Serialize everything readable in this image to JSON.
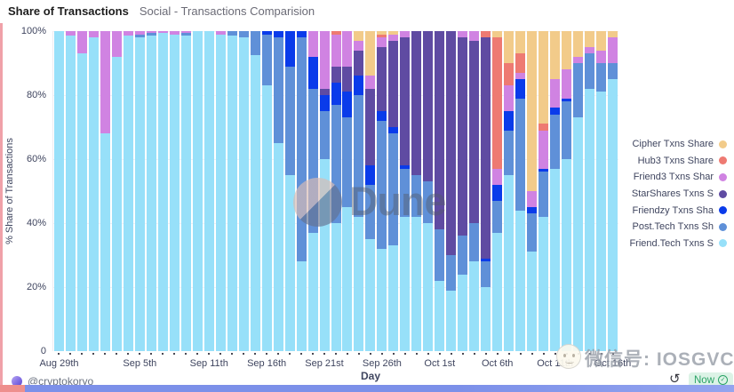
{
  "header": {
    "title": "Share of Transactions",
    "subtitle": "Social - Transactions Comparision"
  },
  "footer": {
    "author": "@cryptokoryo",
    "refresh_status": "Now"
  },
  "icons": {
    "refresh": "↺",
    "check": "✓"
  },
  "watermarks": {
    "dune_text": "Dune",
    "wechat_text": "微信号: IOSGVC"
  },
  "chart_data": {
    "type": "bar",
    "stacked": true,
    "unit": "%",
    "title": "Share of Transactions",
    "xlabel": "Day",
    "ylabel": "% Share of Transactions",
    "ylim": [
      0,
      100
    ],
    "grid": true,
    "legend_position": "right",
    "y_ticks": [
      {
        "label": "100%",
        "value": 100
      },
      {
        "label": "80%",
        "value": 80
      },
      {
        "label": "60%",
        "value": 60
      },
      {
        "label": "40%",
        "value": 40
      },
      {
        "label": "20%",
        "value": 20
      },
      {
        "label": "0",
        "value": 0
      }
    ],
    "x_ticks": [
      {
        "label": "Aug 29th",
        "index": 0
      },
      {
        "label": "Sep 5th",
        "index": 7
      },
      {
        "label": "Sep 11th",
        "index": 13
      },
      {
        "label": "Sep 16th",
        "index": 18
      },
      {
        "label": "Sep 21st",
        "index": 23
      },
      {
        "label": "Sep 26th",
        "index": 28
      },
      {
        "label": "Oct 1st",
        "index": 33
      },
      {
        "label": "Oct 6th",
        "index": 38
      },
      {
        "label": "Oct 11th",
        "index": 43
      },
      {
        "label": "Oct 16th",
        "index": 48
      }
    ],
    "x": [
      "Aug 29th",
      "Aug 30th",
      "Aug 31st",
      "Sep 1st",
      "Sep 2nd",
      "Sep 3rd",
      "Sep 4th",
      "Sep 5th",
      "Sep 6th",
      "Sep 7th",
      "Sep 8th",
      "Sep 9th",
      "Sep 10th",
      "Sep 11th",
      "Sep 12th",
      "Sep 13th",
      "Sep 14th",
      "Sep 15th",
      "Sep 16th",
      "Sep 17th",
      "Sep 18th",
      "Sep 19th",
      "Sep 20th",
      "Sep 21st",
      "Sep 22nd",
      "Sep 23rd",
      "Sep 24th",
      "Sep 25th",
      "Sep 26th",
      "Sep 27th",
      "Sep 28th",
      "Sep 29th",
      "Sep 30th",
      "Oct 1st",
      "Oct 2nd",
      "Oct 3rd",
      "Oct 4th",
      "Oct 5th",
      "Oct 6th",
      "Oct 7th",
      "Oct 8th",
      "Oct 9th",
      "Oct 10th",
      "Oct 11th",
      "Oct 12th",
      "Oct 13th",
      "Oct 14th",
      "Oct 15th",
      "Oct 16th"
    ],
    "series": [
      {
        "name": "Friend.Tech Txns Share",
        "color": "#97e0f9",
        "values": [
          100,
          98.5,
          93,
          98,
          68,
          92,
          98.5,
          98,
          98.5,
          99.5,
          99,
          98.5,
          100,
          100,
          99,
          98.5,
          98,
          92.5,
          83,
          65,
          55,
          28,
          37,
          60,
          40,
          45,
          42,
          35,
          32,
          33,
          42,
          42,
          40,
          22,
          19,
          24,
          28,
          20,
          37,
          55,
          44,
          31,
          42,
          57,
          60,
          73,
          82,
          81,
          85
        ]
      },
      {
        "name": "Post.Tech Txns Share",
        "color": "#5f90d8",
        "values": [
          0,
          0,
          0,
          0,
          0,
          0,
          0,
          1,
          1,
          0,
          0,
          1,
          0,
          0,
          0,
          1.5,
          2,
          7.5,
          16,
          33,
          34,
          70,
          45,
          15,
          37,
          28,
          38,
          17,
          40,
          35,
          15,
          13,
          13,
          16,
          11,
          12,
          12,
          8,
          10,
          14,
          35,
          12,
          14,
          17,
          18,
          17,
          11,
          9,
          5
        ]
      },
      {
        "name": "Friendzy Txns Share",
        "color": "#0a3bea",
        "values": [
          0,
          0,
          0,
          0,
          0,
          0,
          0,
          0,
          0,
          0,
          0,
          0,
          0,
          0,
          0,
          0,
          0,
          0,
          1,
          2,
          11,
          2,
          10,
          5,
          7,
          8,
          6,
          6,
          3,
          2,
          1,
          0,
          0,
          0,
          0,
          0,
          0,
          1,
          5,
          6,
          6,
          2,
          1,
          2,
          1,
          0,
          0,
          0,
          0
        ]
      },
      {
        "name": "StarShares Txns Share",
        "color": "#5f4ba2",
        "values": [
          0,
          0,
          0,
          0,
          0,
          0,
          0,
          0,
          0,
          0,
          0,
          0,
          0,
          0,
          0,
          0,
          0,
          0,
          0,
          0,
          0,
          0,
          0,
          2,
          5,
          8,
          8,
          24,
          20,
          27,
          40,
          45,
          47,
          62,
          70,
          62,
          57,
          69,
          0,
          0,
          0,
          0,
          0,
          0,
          0,
          0,
          0,
          0,
          0
        ]
      },
      {
        "name": "Friend3 Txns Share",
        "color": "#d083e2",
        "values": [
          0,
          1.5,
          7,
          2,
          32,
          8,
          1.5,
          1,
          0.5,
          0.5,
          1,
          0.5,
          0,
          0,
          1,
          0,
          0,
          0,
          0,
          0,
          0,
          0,
          8,
          18,
          10,
          11,
          3,
          4,
          3,
          2,
          2,
          0,
          0,
          0,
          0,
          2,
          3,
          0,
          5,
          8,
          2,
          5,
          12,
          9,
          9,
          2,
          2,
          4,
          8
        ]
      },
      {
        "name": "Hub3 Txns Share",
        "color": "#ee7a72",
        "values": [
          0,
          0,
          0,
          0,
          0,
          0,
          0,
          0,
          0,
          0,
          0,
          0,
          0,
          0,
          0,
          0,
          0,
          0,
          0,
          0,
          0,
          0,
          0,
          0,
          1,
          0,
          0,
          0,
          1,
          0,
          0,
          0,
          0,
          0,
          0,
          0,
          0,
          2,
          41,
          7,
          6,
          0,
          2,
          0,
          0,
          0,
          0,
          0,
          0
        ]
      },
      {
        "name": "Cipher Txns Share",
        "color": "#f2cb8a",
        "values": [
          0,
          0,
          0,
          0,
          0,
          0,
          0,
          0,
          0,
          0,
          0,
          0,
          0,
          0,
          0,
          0,
          0,
          0,
          0,
          0,
          0,
          0,
          0,
          0,
          0,
          0,
          3,
          14,
          1,
          1,
          0,
          0,
          0,
          0,
          0,
          0,
          0,
          0,
          2,
          10,
          7,
          50,
          29,
          15,
          12,
          8,
          5,
          6,
          2
        ]
      }
    ],
    "legend": [
      {
        "label": "Cipher Txns Share",
        "color": "#f2cb8a"
      },
      {
        "label": "Hub3 Txns Share",
        "color": "#ee7a72"
      },
      {
        "label": "Friend3 Txns Shar",
        "color": "#d083e2"
      },
      {
        "label": "StarShares Txns S",
        "color": "#5f4ba2"
      },
      {
        "label": "Friendzy Txns Sha",
        "color": "#0a3bea"
      },
      {
        "label": "Post.Tech Txns Sh",
        "color": "#5f90d8"
      },
      {
        "label": "Friend.Tech Txns S",
        "color": "#97e0f9"
      }
    ]
  }
}
